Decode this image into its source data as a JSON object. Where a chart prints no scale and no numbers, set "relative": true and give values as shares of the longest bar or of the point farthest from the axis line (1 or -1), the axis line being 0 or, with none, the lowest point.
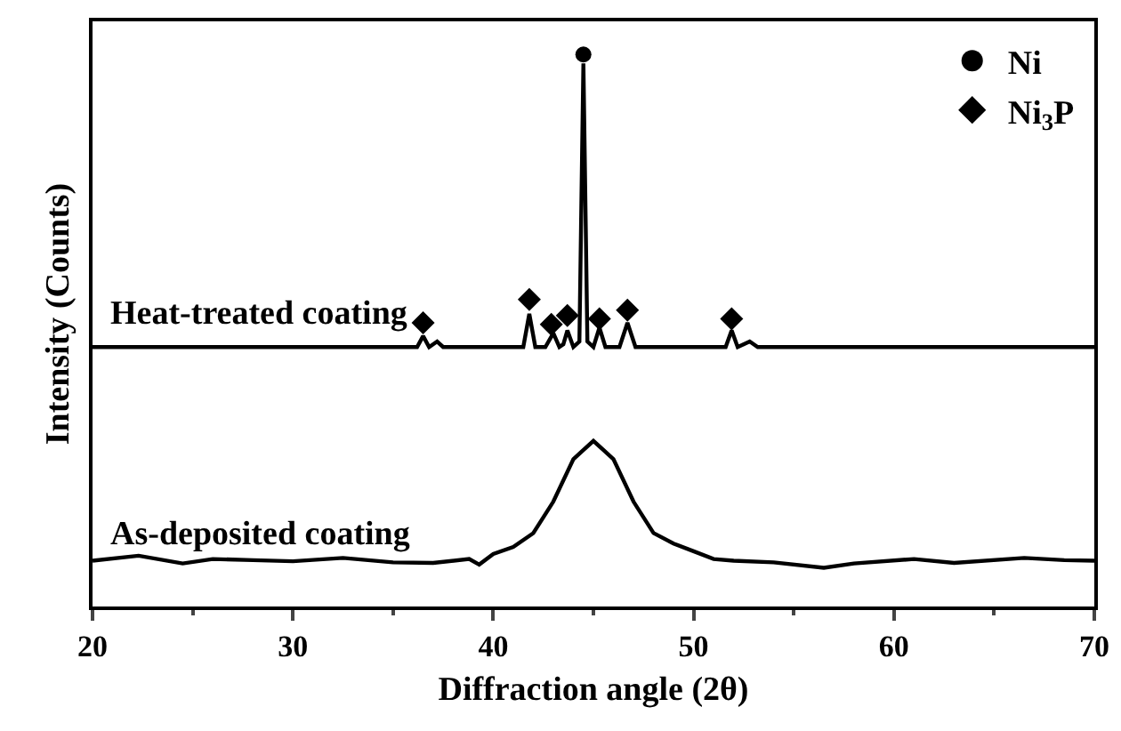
{
  "chart_data": {
    "type": "line",
    "relative": true,
    "xlabel": "Diffraction angle (2θ)",
    "ylabel": "Intensity (Counts)",
    "xlim": [
      20,
      70
    ],
    "xticks": [
      20,
      30,
      40,
      50,
      60,
      70
    ],
    "grid": false,
    "legend": "top right",
    "series": [
      {
        "name": "Heat-treated coating",
        "color": "#000000",
        "x": [
          20,
          25,
          30,
          35,
          36.2,
          36.5,
          36.8,
          37.2,
          37.5,
          40,
          41.5,
          41.8,
          42.1,
          42.6,
          43.0,
          43.3,
          43.5,
          43.7,
          44.0,
          44.3,
          44.5,
          44.7,
          45.0,
          45.3,
          45.6,
          46.3,
          46.7,
          47.1,
          48,
          50.5,
          51.6,
          51.9,
          52.2,
          52.8,
          53.2,
          56,
          60,
          65,
          70
        ],
        "values": [
          0.47,
          0.47,
          0.47,
          0.47,
          0.47,
          0.49,
          0.47,
          0.48,
          0.47,
          0.47,
          0.47,
          0.53,
          0.47,
          0.47,
          0.495,
          0.47,
          0.475,
          0.5,
          0.47,
          0.48,
          0.984,
          0.48,
          0.47,
          0.505,
          0.47,
          0.47,
          0.514,
          0.47,
          0.47,
          0.47,
          0.47,
          0.5,
          0.47,
          0.48,
          0.47,
          0.47,
          0.47,
          0.47,
          0.47
        ]
      },
      {
        "name": "As-deposited coating",
        "color": "#000000",
        "x": [
          20,
          22.3,
          24.5,
          26,
          28,
          30,
          32.5,
          35,
          37,
          38.8,
          39.3,
          40,
          41,
          42,
          43,
          44,
          45,
          46,
          47,
          48,
          49,
          50,
          51,
          52,
          54,
          56.5,
          58,
          61,
          63,
          66.5,
          68.5,
          70
        ],
        "values": [
          0.083,
          0.092,
          0.078,
          0.086,
          0.084,
          0.082,
          0.088,
          0.08,
          0.079,
          0.086,
          0.076,
          0.095,
          0.108,
          0.133,
          0.19,
          0.267,
          0.3,
          0.267,
          0.19,
          0.133,
          0.114,
          0.1,
          0.086,
          0.083,
          0.08,
          0.07,
          0.078,
          0.086,
          0.079,
          0.088,
          0.084,
          0.083
        ]
      },
      {
        "name": "Ni",
        "type": "scatter",
        "marker": "circle",
        "color": "#000000",
        "x": [
          44.5
        ],
        "values": [
          1
        ]
      },
      {
        "name": "Ni$_{3}$P",
        "type": "scatter",
        "marker": "diamond",
        "color": "#000000",
        "x": [
          36.5,
          41.8,
          42.9,
          43.7,
          45.3,
          46.7,
          51.9
        ],
        "values": [
          0.514,
          0.556,
          0.511,
          0.527,
          0.521,
          0.537,
          0.521
        ]
      }
    ]
  }
}
